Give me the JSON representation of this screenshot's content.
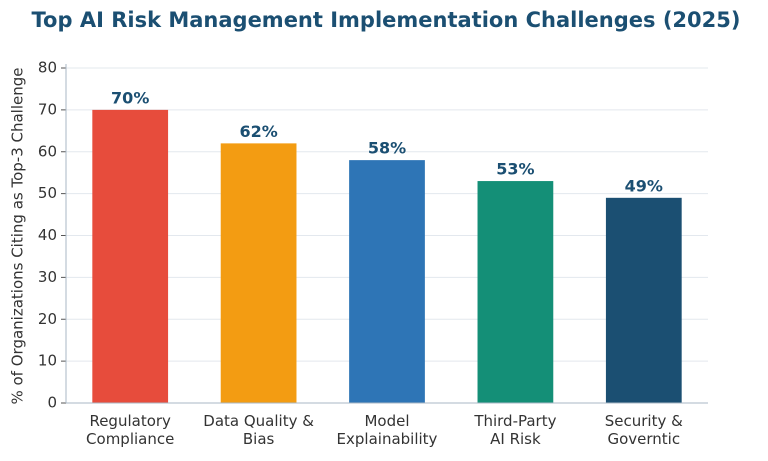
{
  "chart_data": {
    "type": "bar",
    "title": "Top AI Risk Management Implementation Challenges (2025)",
    "y_label": "% of Organizations Citing as Top-3 Challenge",
    "categories": [
      "Regulatory\nCompliance",
      "Data Quality &\nBias",
      "Model\nExplainability",
      "Third-Party\nAI Risk",
      "Security &\nGoverntic"
    ],
    "values": [
      70,
      62,
      58,
      53,
      49
    ],
    "value_labels": [
      "70%",
      "62%",
      "58%",
      "53%",
      "49%"
    ],
    "colors": [
      "#e74c3c",
      "#f39c12",
      "#2e75b6",
      "#148f77",
      "#1b4f72"
    ],
    "ylim": [
      0,
      80
    ],
    "yticks": [
      0,
      10,
      20,
      30,
      40,
      50,
      60,
      70,
      80
    ],
    "grid": true
  }
}
